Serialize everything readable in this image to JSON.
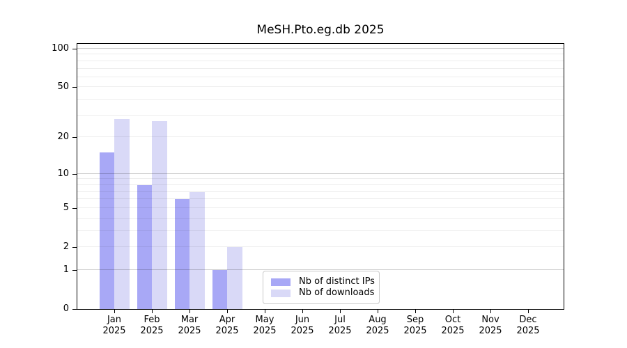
{
  "chart_data": {
    "type": "bar",
    "title": "MeSH.Pto.eg.db 2025",
    "x_categories": [
      "Jan",
      "Feb",
      "Mar",
      "Apr",
      "May",
      "Jun",
      "Jul",
      "Aug",
      "Sep",
      "Oct",
      "Nov",
      "Dec"
    ],
    "x_tick_year": "2025",
    "series": [
      {
        "name": "Nb of distinct IPs",
        "color": "#a8a8f6",
        "values": [
          15,
          8,
          6,
          1,
          0,
          0,
          0,
          0,
          0,
          0,
          0,
          0
        ]
      },
      {
        "name": "Nb of downloads",
        "color": "#d9d9f7",
        "values": [
          28,
          27,
          7,
          2,
          0,
          0,
          0,
          0,
          0,
          0,
          0,
          0
        ]
      }
    ],
    "y_axis": {
      "scale": "log10(v+1)",
      "tick_values": [
        0,
        1,
        2,
        5,
        10,
        20,
        50,
        100
      ],
      "minor_gridlines": [
        2,
        3,
        4,
        5,
        6,
        7,
        8,
        9,
        20,
        30,
        40,
        50,
        60,
        70,
        80,
        90
      ],
      "major_gridlines": [
        1,
        10,
        100
      ],
      "range_max": 110
    },
    "legend": {
      "position": "lower center",
      "entries": [
        "Nb of distinct IPs",
        "Nb of downloads"
      ]
    },
    "colors": {
      "grid_minor": "rgba(0,0,0,0.07)",
      "grid_major": "rgba(0,0,0,0.20)",
      "axis": "#000000",
      "background": "#ffffff"
    },
    "grid": true
  }
}
